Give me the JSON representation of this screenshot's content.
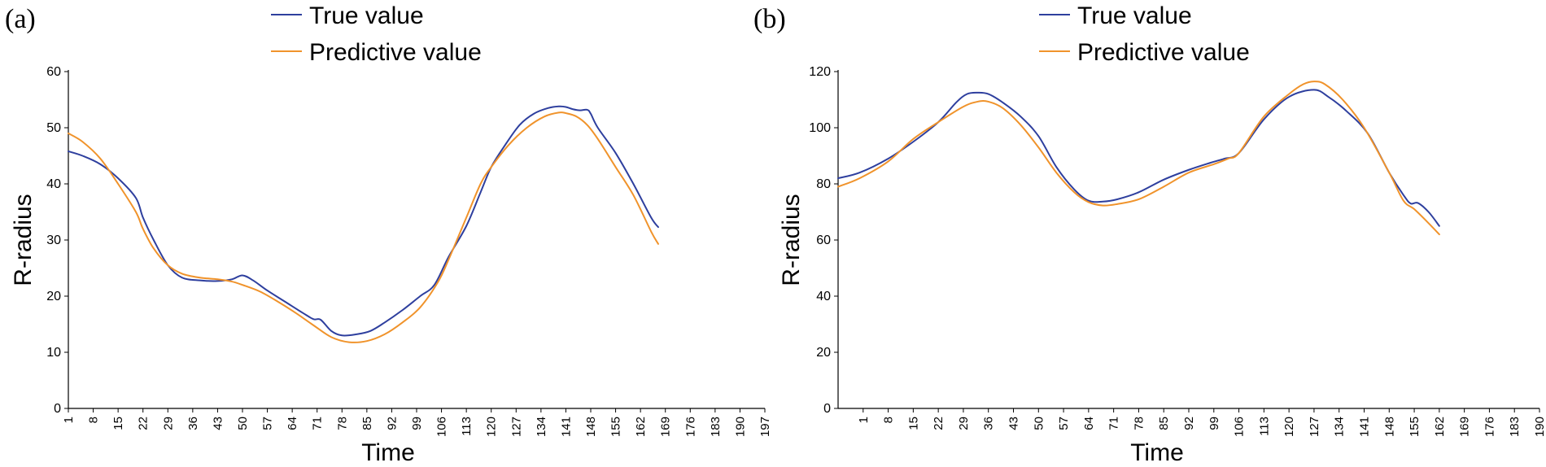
{
  "chart_data": [
    {
      "type": "line",
      "panel_label": "(a)",
      "xlabel": "Time",
      "ylabel": "R-radius",
      "ylim": [
        0,
        60
      ],
      "yticks": [
        0,
        10,
        20,
        30,
        40,
        50,
        60
      ],
      "xlim": [
        1,
        197
      ],
      "xticks": [
        "1",
        "8",
        "15",
        "22",
        "29",
        "36",
        "43",
        "50",
        "57",
        "64",
        "71",
        "78",
        "85",
        "92",
        "99",
        "106",
        "113",
        "120",
        "127",
        "134",
        "141",
        "148",
        "155",
        "162",
        "169",
        "176",
        "183",
        "190",
        "197"
      ],
      "legend_position": "top-center",
      "series": [
        {
          "name": "True value",
          "color": "#2e3f9e",
          "x": [
            1,
            5,
            10,
            15,
            20,
            22,
            25,
            29,
            33,
            38,
            43,
            47,
            50,
            53,
            57,
            62,
            67,
            70,
            72,
            75,
            78,
            82,
            86,
            90,
            95,
            100,
            104,
            108,
            113,
            117,
            120,
            124,
            128,
            132,
            136,
            139,
            141,
            143,
            145,
            147,
            148,
            150,
            155,
            160,
            165,
            167
          ],
          "y": [
            45.8,
            45,
            43.5,
            41,
            37.5,
            34,
            30,
            25.5,
            23.3,
            22.8,
            22.7,
            23,
            23.7,
            22.8,
            21,
            19,
            17,
            15.9,
            15.8,
            13.8,
            13,
            13.2,
            13.8,
            15.3,
            17.5,
            20,
            22,
            27,
            32.5,
            38.5,
            43,
            47,
            50.5,
            52.5,
            53.5,
            53.8,
            53.7,
            53.3,
            53.1,
            53.2,
            52.5,
            50,
            45.5,
            40,
            34,
            32.3
          ]
        },
        {
          "name": "Predictive value",
          "color": "#f0932b",
          "x": [
            1,
            5,
            10,
            15,
            20,
            22,
            25,
            29,
            33,
            38,
            43,
            47,
            50,
            55,
            60,
            65,
            70,
            75,
            80,
            85,
            90,
            95,
            100,
            105,
            108,
            113,
            117,
            120,
            125,
            130,
            135,
            139,
            141,
            144,
            147,
            150,
            155,
            160,
            165,
            167
          ],
          "y": [
            49,
            47.5,
            44.5,
            40,
            35,
            32,
            28.5,
            25.5,
            24,
            23.3,
            23,
            22.6,
            22,
            20.8,
            19,
            17,
            14.8,
            12.7,
            11.8,
            12,
            13.2,
            15.3,
            18,
            22.5,
            26.5,
            34,
            40,
            43,
            47,
            50,
            52,
            52.7,
            52.6,
            52,
            50.5,
            48,
            43,
            38,
            31.5,
            29.3
          ]
        }
      ]
    },
    {
      "type": "line",
      "panel_label": "(b)",
      "xlabel": "Time",
      "ylabel": "R-radius",
      "ylim": [
        0,
        120
      ],
      "yticks": [
        0,
        20,
        40,
        60,
        80,
        100,
        120
      ],
      "xlim": [
        -6,
        190
      ],
      "xticks": [
        "1",
        "8",
        "15",
        "22",
        "29",
        "36",
        "43",
        "50",
        "57",
        "64",
        "71",
        "78",
        "85",
        "92",
        "99",
        "106",
        "113",
        "120",
        "127",
        "134",
        "141",
        "148",
        "155",
        "162",
        "169",
        "176",
        "183",
        "190"
      ],
      "legend_position": "top-center",
      "series": [
        {
          "name": "True value",
          "color": "#2e3f9e",
          "x": [
            -6,
            0,
            8,
            15,
            22,
            27,
            30,
            33,
            36,
            40,
            45,
            50,
            55,
            60,
            64,
            68,
            72,
            78,
            85,
            92,
            98,
            102,
            106,
            113,
            120,
            127,
            131,
            136,
            142,
            148,
            152,
            154,
            156,
            159,
            162
          ],
          "y": [
            82,
            84,
            89,
            95,
            102,
            109,
            112,
            112.5,
            112,
            109,
            104,
            97,
            86,
            78,
            74,
            73.7,
            74.5,
            77,
            81.5,
            85,
            87.5,
            89,
            91,
            103,
            111,
            113.5,
            111,
            106,
            98,
            84,
            76,
            73,
            73.2,
            70,
            65
          ]
        },
        {
          "name": "Predictive value",
          "color": "#f0932b",
          "x": [
            -6,
            0,
            8,
            15,
            22,
            29,
            33,
            36,
            40,
            45,
            50,
            55,
            60,
            64,
            68,
            72,
            78,
            85,
            92,
            99,
            103,
            106,
            113,
            120,
            124,
            127,
            130,
            135,
            141,
            148,
            152,
            155,
            159,
            162
          ],
          "y": [
            79,
            82,
            88,
            96,
            102,
            107.5,
            109.3,
            109.3,
            107,
            101,
            93,
            84,
            77,
            73.5,
            72.3,
            72.8,
            74.5,
            79,
            84,
            87,
            89,
            91,
            104,
            112,
            115.5,
            116.5,
            115.5,
            110,
            100,
            84,
            74,
            71,
            66,
            62
          ]
        }
      ]
    }
  ]
}
